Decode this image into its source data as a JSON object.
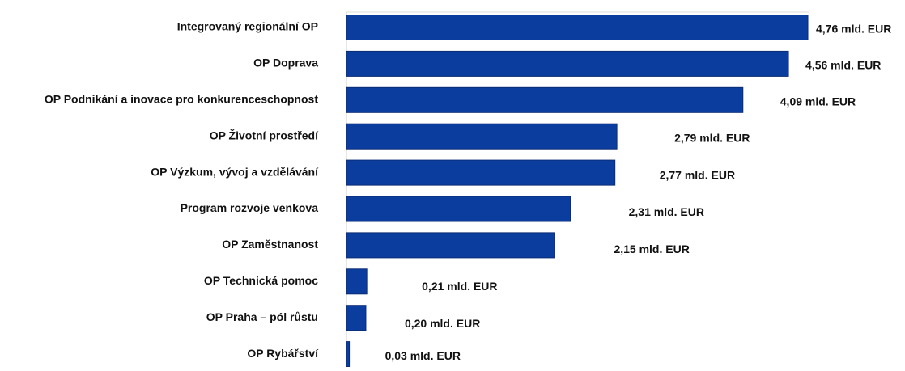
{
  "chart_data": {
    "type": "hbar",
    "categories": [
      "Integrovaný regionální OP",
      "OP Doprava",
      "OP Podnikání a inovace pro konkurenceschopnost",
      "OP Životní prostředí",
      "OP Výzkum, vývoj a vzdělávání",
      "Program rozvoje venkova",
      "OP Zaměstnanost",
      "OP Technická pomoc",
      "OP Praha – pól růstu",
      "OP Rybářství"
    ],
    "values": [
      4.76,
      4.56,
      4.09,
      2.79,
      2.77,
      2.31,
      2.15,
      0.21,
      0.2,
      0.03
    ],
    "value_labels": [
      "4,76 mld. EUR",
      "4,56 mld. EUR",
      "4,09 mld. EUR",
      "2,79 mld. EUR",
      "2,77 mld. EUR",
      "2,31 mld. EUR",
      "2,15 mld. EUR",
      "0,21 mld. EUR",
      "0,20 mld. EUR",
      "0,03 mld. EUR"
    ],
    "color": "#0b3d9e"
  }
}
